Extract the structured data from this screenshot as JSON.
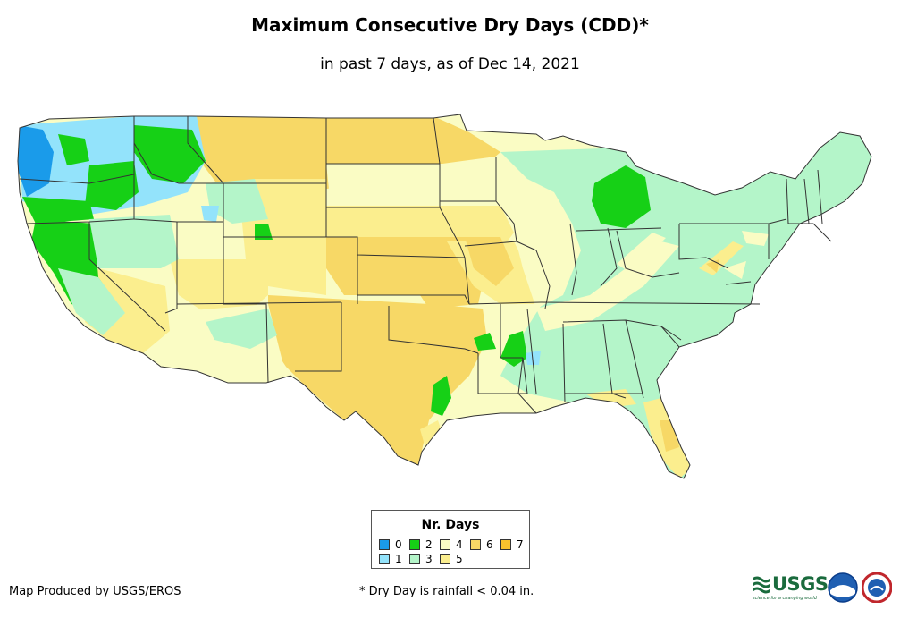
{
  "title": "Maximum Consecutive Dry Days (CDD)*",
  "subtitle": "in past 7 days, as of Dec 14, 2021",
  "legend": {
    "title": "Nr. Days",
    "items": [
      {
        "label": "0",
        "color": "#1a9bea"
      },
      {
        "label": "1",
        "color": "#93e3fb"
      },
      {
        "label": "2",
        "color": "#16d016"
      },
      {
        "label": "3",
        "color": "#b4f5c9"
      },
      {
        "label": "4",
        "color": "#fafcc4"
      },
      {
        "label": "5",
        "color": "#fbee8e"
      },
      {
        "label": "6",
        "color": "#f7d866"
      },
      {
        "label": "7",
        "color": "#f8c12d"
      }
    ]
  },
  "credit": "Map Produced by USGS/EROS",
  "footnote": "* Dry Day is rainfall < 0.04 in.",
  "logos": {
    "usgs": "USGS",
    "usgs_tagline": "science for a changing world",
    "noaa": "noaa-logo",
    "nws": "national-weather-service-logo"
  }
}
